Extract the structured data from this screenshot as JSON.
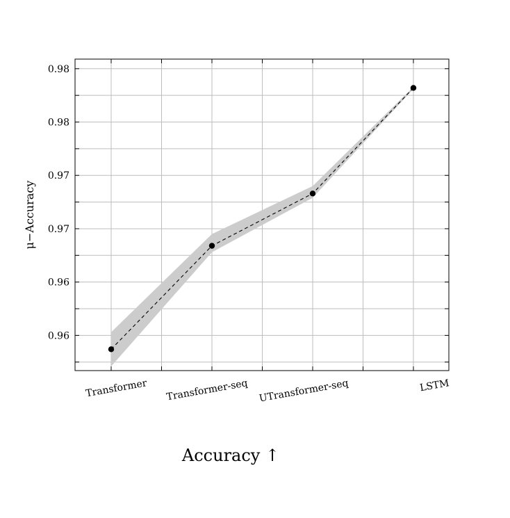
{
  "chart_data": {
    "type": "line",
    "categories": [
      "Transformer",
      "Transformer-seq",
      "UTransformer-seq",
      "LSTM"
    ],
    "series": [
      {
        "values": [
          0.9587,
          0.9684,
          0.9733,
          0.9832
        ],
        "band_lower": [
          0.9571,
          0.9678,
          0.9729,
          0.9831
        ],
        "band_upper": [
          0.9603,
          0.9695,
          0.974,
          0.9833
        ]
      }
    ],
    "ylabel": "μ−Accuracy",
    "xlabel": "Accuracy ↑",
    "yticks": [
      0.96,
      0.965,
      0.97,
      0.975,
      0.98,
      0.985
    ],
    "ytick_labels": [
      "0.96",
      "0.96",
      "0.97",
      "0.97",
      "0.98",
      "0.98"
    ],
    "ylim": [
      0.9567,
      0.9859
    ],
    "grid": true,
    "line_style": "dashed",
    "band_color": "#cccccc",
    "line_color": "#000000"
  }
}
